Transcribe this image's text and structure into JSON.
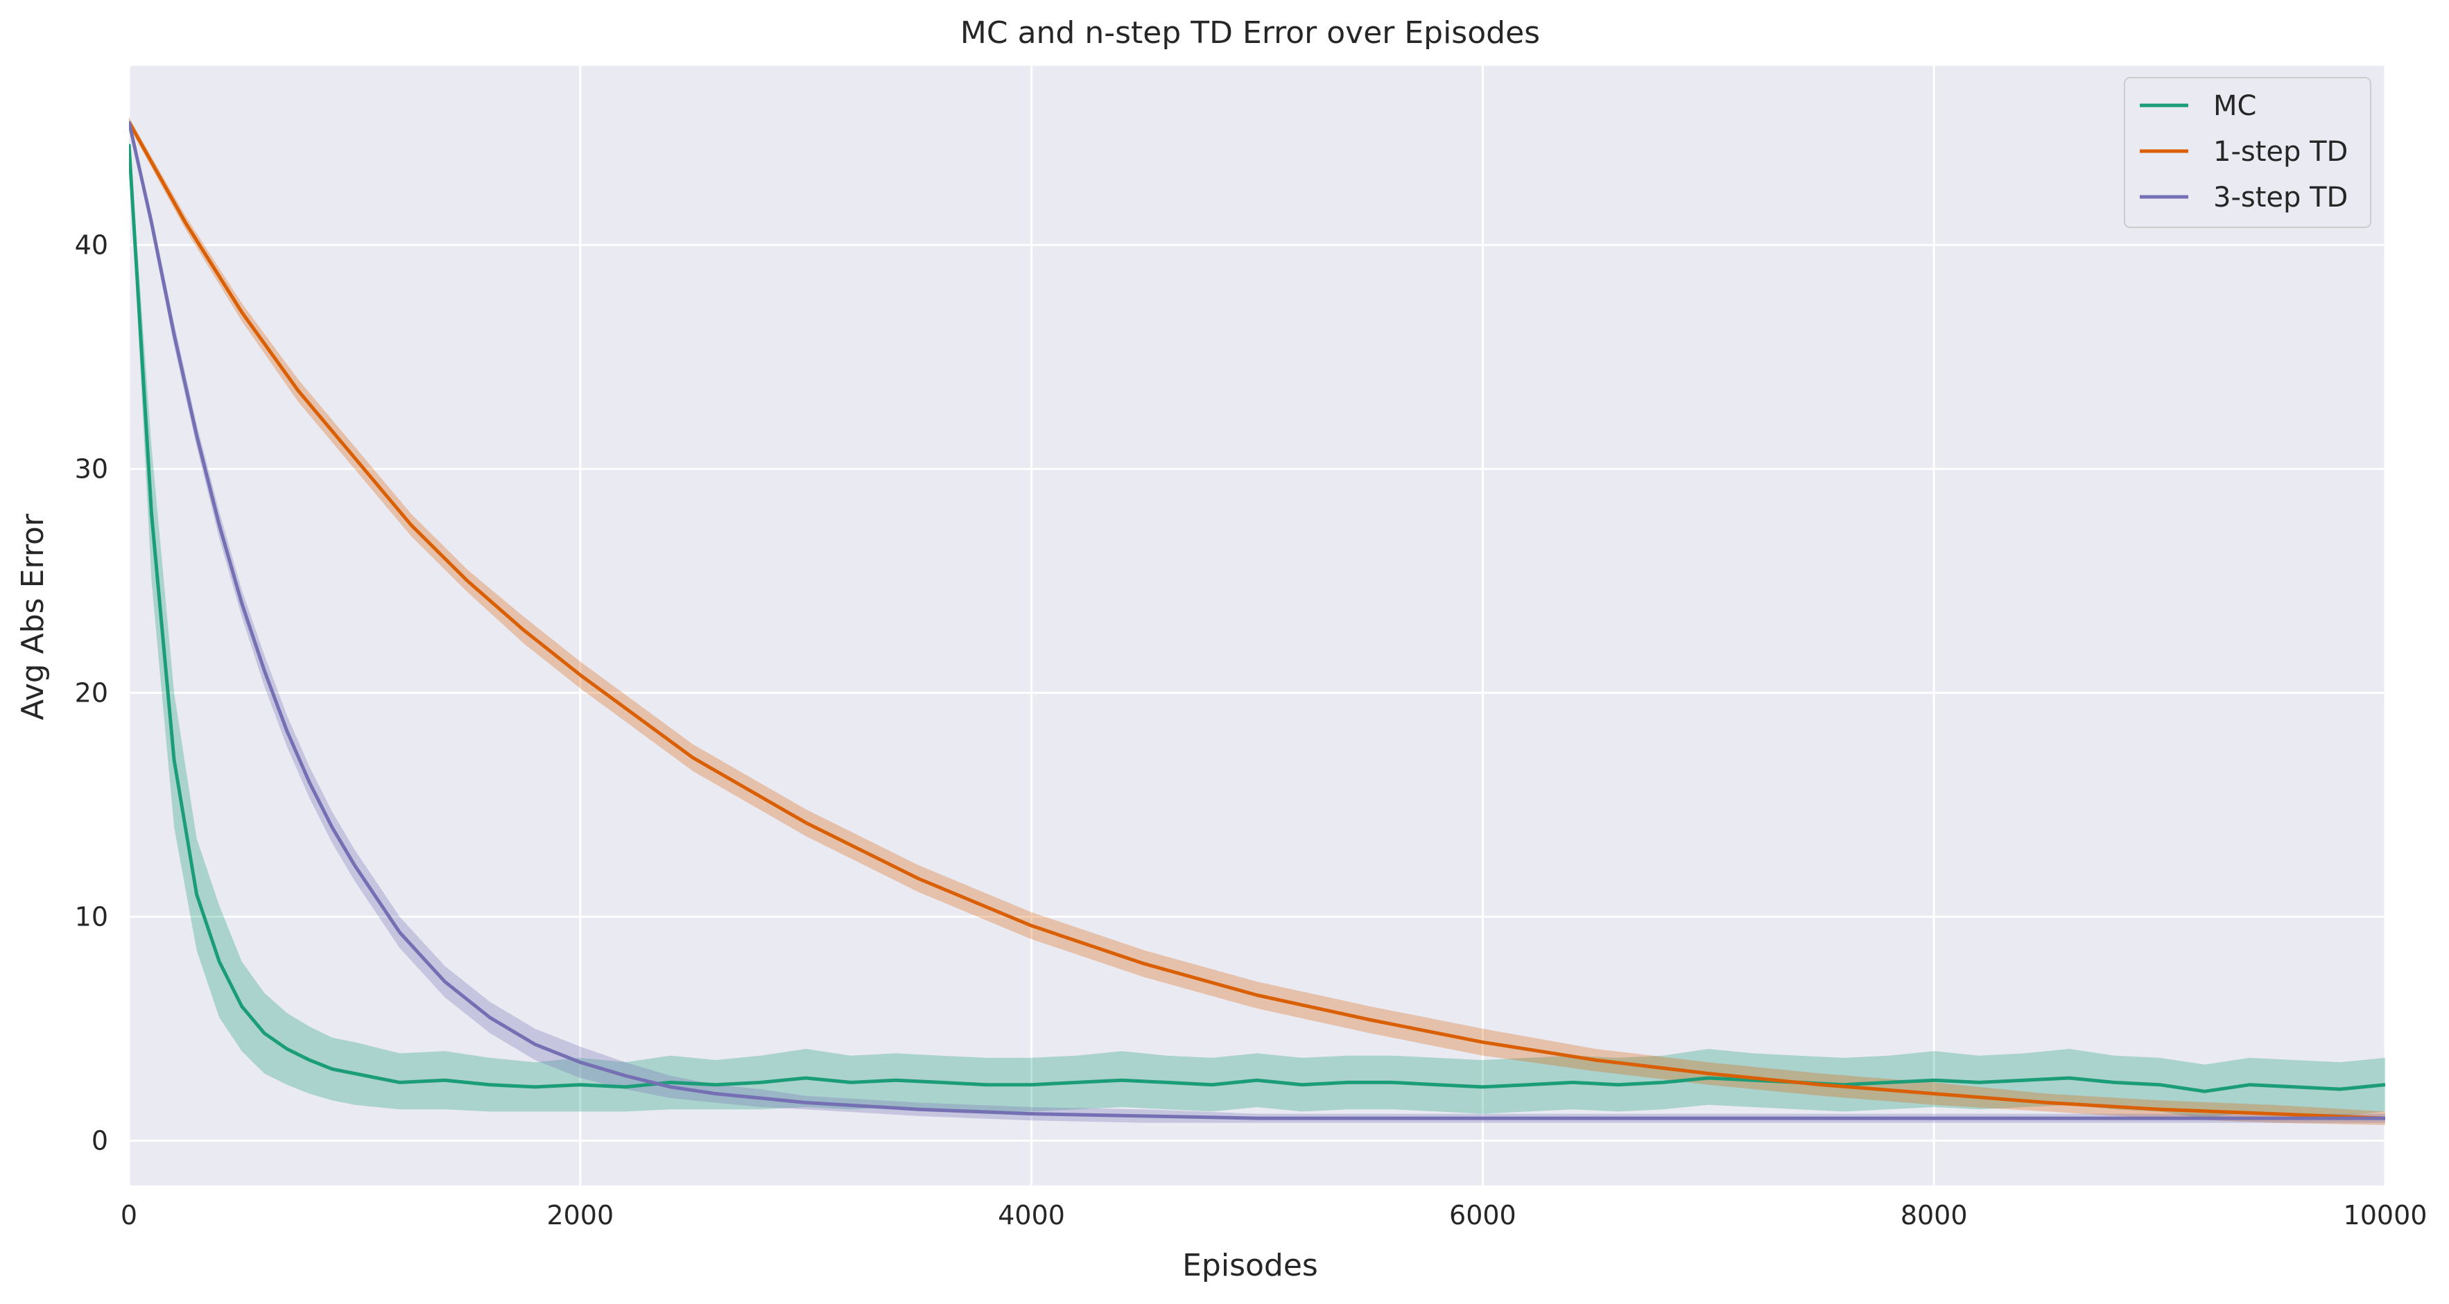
{
  "chart_data": {
    "type": "line",
    "title": "MC and n-step TD Error over Episodes",
    "xlabel": "Episodes",
    "ylabel": "Avg Abs Error",
    "xlim": [
      0,
      10000
    ],
    "ylim": [
      -2,
      48
    ],
    "xticks": [
      0,
      2000,
      4000,
      6000,
      8000,
      10000
    ],
    "yticks": [
      0,
      10,
      20,
      30,
      40
    ],
    "grid": true,
    "legend_position": "top-right",
    "series": [
      {
        "name": "MC",
        "color": "#1b9e77",
        "x": [
          0,
          100,
          200,
          300,
          400,
          500,
          600,
          700,
          800,
          900,
          1000,
          1200,
          1400,
          1600,
          1800,
          2000,
          2200,
          2400,
          2600,
          2800,
          3000,
          3200,
          3400,
          3600,
          3800,
          4000,
          4200,
          4400,
          4600,
          4800,
          5000,
          5200,
          5400,
          5600,
          5800,
          6000,
          6200,
          6400,
          6600,
          6800,
          7000,
          7200,
          7400,
          7600,
          7800,
          8000,
          8200,
          8400,
          8600,
          8800,
          9000,
          9200,
          9400,
          9600,
          9800,
          10000
        ],
        "y": [
          44.5,
          28,
          17,
          11,
          8,
          6,
          4.8,
          4.1,
          3.6,
          3.2,
          3.0,
          2.6,
          2.7,
          2.5,
          2.4,
          2.5,
          2.4,
          2.6,
          2.5,
          2.6,
          2.8,
          2.6,
          2.7,
          2.6,
          2.5,
          2.5,
          2.6,
          2.7,
          2.6,
          2.5,
          2.7,
          2.5,
          2.6,
          2.6,
          2.5,
          2.4,
          2.5,
          2.6,
          2.5,
          2.6,
          2.8,
          2.7,
          2.6,
          2.5,
          2.6,
          2.7,
          2.6,
          2.7,
          2.8,
          2.6,
          2.5,
          2.2,
          2.5,
          2.4,
          2.3,
          2.5
        ],
        "lower": [
          44,
          25,
          14,
          8.5,
          5.5,
          4.0,
          3.0,
          2.5,
          2.1,
          1.8,
          1.6,
          1.4,
          1.4,
          1.3,
          1.3,
          1.3,
          1.3,
          1.4,
          1.4,
          1.4,
          1.5,
          1.4,
          1.5,
          1.4,
          1.3,
          1.3,
          1.4,
          1.5,
          1.4,
          1.3,
          1.5,
          1.3,
          1.4,
          1.4,
          1.3,
          1.2,
          1.3,
          1.4,
          1.3,
          1.4,
          1.6,
          1.5,
          1.4,
          1.3,
          1.4,
          1.5,
          1.4,
          1.5,
          1.6,
          1.4,
          1.3,
          1.0,
          1.3,
          1.2,
          1.1,
          1.3
        ],
        "upper": [
          45,
          31,
          20,
          13.5,
          10.5,
          8.0,
          6.6,
          5.7,
          5.1,
          4.6,
          4.4,
          3.9,
          4.0,
          3.7,
          3.5,
          3.7,
          3.5,
          3.8,
          3.6,
          3.8,
          4.1,
          3.8,
          3.9,
          3.8,
          3.7,
          3.7,
          3.8,
          4.0,
          3.8,
          3.7,
          3.9,
          3.7,
          3.8,
          3.8,
          3.7,
          3.6,
          3.7,
          3.8,
          3.7,
          3.8,
          4.1,
          3.9,
          3.8,
          3.7,
          3.8,
          4.0,
          3.8,
          3.9,
          4.1,
          3.8,
          3.7,
          3.4,
          3.7,
          3.6,
          3.5,
          3.7
        ]
      },
      {
        "name": "1-step TD",
        "color": "#d95f02",
        "x": [
          0,
          250,
          500,
          750,
          1000,
          1250,
          1500,
          1750,
          2000,
          2500,
          3000,
          3500,
          4000,
          4500,
          5000,
          5500,
          6000,
          6500,
          7000,
          7500,
          8000,
          8500,
          9000,
          9500,
          10000
        ],
        "y": [
          45.5,
          41,
          37,
          33.5,
          30.5,
          27.5,
          25,
          22.8,
          20.8,
          17.1,
          14.2,
          11.7,
          9.6,
          7.9,
          6.5,
          5.4,
          4.4,
          3.6,
          3.0,
          2.5,
          2.1,
          1.7,
          1.4,
          1.2,
          1.0
        ],
        "lower": [
          45.3,
          40.7,
          36.6,
          33.0,
          30.0,
          27.0,
          24.5,
          22.2,
          20.2,
          16.5,
          13.6,
          11.1,
          9.0,
          7.3,
          5.9,
          4.8,
          3.8,
          3.1,
          2.5,
          2.0,
          1.6,
          1.3,
          1.0,
          0.8,
          0.7
        ],
        "upper": [
          45.7,
          41.3,
          37.4,
          34.0,
          31.0,
          28.0,
          25.5,
          23.4,
          21.4,
          17.7,
          14.8,
          12.3,
          10.2,
          8.5,
          7.1,
          6.0,
          5.0,
          4.1,
          3.5,
          3.0,
          2.6,
          2.1,
          1.8,
          1.6,
          1.3
        ]
      },
      {
        "name": "3-step TD",
        "color": "#7570b3",
        "x": [
          0,
          100,
          200,
          300,
          400,
          500,
          600,
          700,
          800,
          900,
          1000,
          1200,
          1400,
          1600,
          1800,
          2000,
          2200,
          2400,
          2600,
          2800,
          3000,
          3500,
          4000,
          4500,
          5000,
          5500,
          6000,
          6500,
          7000,
          7500,
          8000,
          8500,
          9000,
          9500,
          10000
        ],
        "y": [
          45.5,
          41,
          36,
          31.5,
          27.5,
          24,
          21,
          18.3,
          16,
          14,
          12.3,
          9.3,
          7.1,
          5.5,
          4.3,
          3.5,
          2.9,
          2.4,
          2.1,
          1.9,
          1.7,
          1.4,
          1.2,
          1.1,
          1.0,
          1.0,
          1.0,
          1.0,
          1.0,
          1.0,
          1.0,
          1.0,
          1.0,
          1.0,
          1.0
        ],
        "lower": [
          45.3,
          40.6,
          35.5,
          31.0,
          26.9,
          23.4,
          20.3,
          17.6,
          15.3,
          13.3,
          11.6,
          8.6,
          6.4,
          4.8,
          3.6,
          2.8,
          2.3,
          1.9,
          1.7,
          1.5,
          1.4,
          1.1,
          0.9,
          0.8,
          0.8,
          0.8,
          0.8,
          0.8,
          0.8,
          0.8,
          0.8,
          0.8,
          0.8,
          0.8,
          0.8
        ],
        "upper": [
          45.7,
          41.4,
          36.5,
          32.0,
          28.1,
          24.6,
          21.7,
          19.0,
          16.7,
          14.7,
          13.0,
          10.0,
          7.8,
          6.2,
          5.0,
          4.2,
          3.5,
          2.9,
          2.5,
          2.3,
          2.0,
          1.7,
          1.5,
          1.4,
          1.2,
          1.2,
          1.2,
          1.2,
          1.2,
          1.2,
          1.2,
          1.2,
          1.2,
          1.2,
          1.2
        ]
      }
    ]
  }
}
